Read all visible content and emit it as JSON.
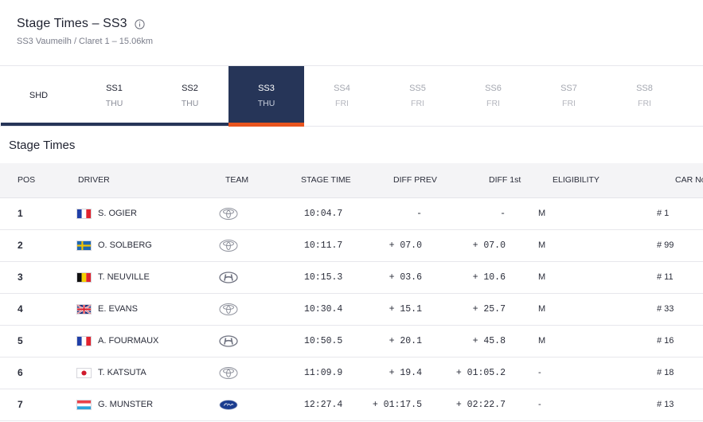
{
  "header": {
    "title": "Stage Times – SS3",
    "subtitle": "SS3 Vaumeilh / Claret 1 – 15.06km"
  },
  "tabs": [
    {
      "name": "SHD",
      "day": ""
    },
    {
      "name": "SS1",
      "day": "THU"
    },
    {
      "name": "SS2",
      "day": "THU"
    },
    {
      "name": "SS3",
      "day": "THU"
    },
    {
      "name": "SS4",
      "day": "FRI"
    },
    {
      "name": "SS5",
      "day": "FRI"
    },
    {
      "name": "SS6",
      "day": "FRI"
    },
    {
      "name": "SS7",
      "day": "FRI"
    },
    {
      "name": "SS8",
      "day": "FRI"
    }
  ],
  "section_title": "Stage Times",
  "columns": {
    "pos": "POS",
    "driver": "DRIVER",
    "team": "TEAM",
    "stage_time": "STAGE TIME",
    "diff_prev": "DIFF PREV",
    "diff_first": "DIFF 1st",
    "eligibility": "ELIGIBILITY",
    "car_no": "CAR No"
  },
  "colors": {
    "navy": "#263558",
    "accent": "#e8541e"
  },
  "rows": [
    {
      "pos": "1",
      "flag": "france",
      "driver": "S. OGIER",
      "team": "toyota-logo",
      "time": "10:04.7",
      "diff_prev": "-",
      "diff_first": "-",
      "elig": "M",
      "car": "# 1"
    },
    {
      "pos": "2",
      "flag": "sweden",
      "driver": "O. SOLBERG",
      "team": "toyota-logo",
      "time": "10:11.7",
      "diff_prev": "+ 07.0",
      "diff_first": "+ 07.0",
      "elig": "M",
      "car": "# 99"
    },
    {
      "pos": "3",
      "flag": "belgium",
      "driver": "T. NEUVILLE",
      "team": "hyundai-logo",
      "time": "10:15.3",
      "diff_prev": "+ 03.6",
      "diff_first": "+ 10.6",
      "elig": "M",
      "car": "# 11"
    },
    {
      "pos": "4",
      "flag": "united-kingdom",
      "driver": "E. EVANS",
      "team": "toyota-logo",
      "time": "10:30.4",
      "diff_prev": "+ 15.1",
      "diff_first": "+ 25.7",
      "elig": "M",
      "car": "# 33"
    },
    {
      "pos": "5",
      "flag": "france",
      "driver": "A. FOURMAUX",
      "team": "hyundai-logo",
      "time": "10:50.5",
      "diff_prev": "+ 20.1",
      "diff_first": "+ 45.8",
      "elig": "M",
      "car": "# 16"
    },
    {
      "pos": "6",
      "flag": "japan",
      "driver": "T. KATSUTA",
      "team": "toyota-logo",
      "time": "11:09.9",
      "diff_prev": "+ 19.4",
      "diff_first": "+ 01:05.2",
      "elig": "-",
      "car": "# 18"
    },
    {
      "pos": "7",
      "flag": "luxembourg",
      "driver": "G. MUNSTER",
      "team": "ford-logo",
      "time": "12:27.4",
      "diff_prev": "+ 01:17.5",
      "diff_first": "+ 02:22.7",
      "elig": "-",
      "car": "# 13"
    }
  ]
}
